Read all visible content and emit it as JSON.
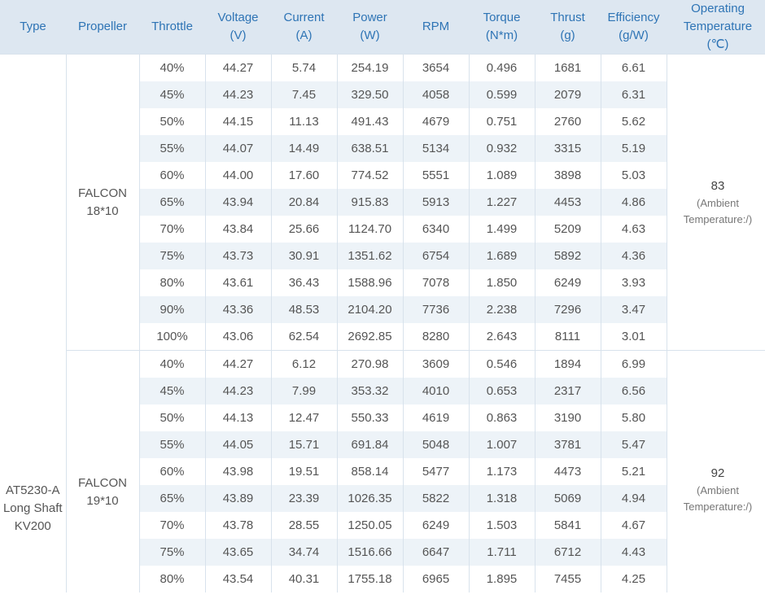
{
  "headers": {
    "type": "Type",
    "propeller": "Propeller",
    "throttle": "Throttle",
    "voltage_l1": "Voltage",
    "voltage_l2": "(V)",
    "current_l1": "Current",
    "current_l2": "(A)",
    "power_l1": "Power",
    "power_l2": "(W)",
    "rpm": "RPM",
    "torque_l1": "Torque",
    "torque_l2": "(N*m)",
    "thrust_l1": "Thrust",
    "thrust_l2": "(g)",
    "efficiency_l1": "Efficiency",
    "efficiency_l2": "(g/W)",
    "optemp_l1": "Operating",
    "optemp_l2": "Temperature",
    "optemp_l3": "(℃)"
  },
  "type": {
    "l1": "AT5230-A",
    "l2": "Long Shaft",
    "l3": "KV200"
  },
  "groups": [
    {
      "prop_l1": "FALCON",
      "prop_l2": "18*10",
      "temp": "83",
      "ambient_l1": "(Ambient",
      "ambient_l2": "Temperature:/)",
      "rows": [
        {
          "throttle": "40%",
          "voltage": "44.27",
          "current": "5.74",
          "power": "254.19",
          "rpm": "3654",
          "torque": "0.496",
          "thrust": "1681",
          "efficiency": "6.61"
        },
        {
          "throttle": "45%",
          "voltage": "44.23",
          "current": "7.45",
          "power": "329.50",
          "rpm": "4058",
          "torque": "0.599",
          "thrust": "2079",
          "efficiency": "6.31"
        },
        {
          "throttle": "50%",
          "voltage": "44.15",
          "current": "11.13",
          "power": "491.43",
          "rpm": "4679",
          "torque": "0.751",
          "thrust": "2760",
          "efficiency": "5.62"
        },
        {
          "throttle": "55%",
          "voltage": "44.07",
          "current": "14.49",
          "power": "638.51",
          "rpm": "5134",
          "torque": "0.932",
          "thrust": "3315",
          "efficiency": "5.19"
        },
        {
          "throttle": "60%",
          "voltage": "44.00",
          "current": "17.60",
          "power": "774.52",
          "rpm": "5551",
          "torque": "1.089",
          "thrust": "3898",
          "efficiency": "5.03"
        },
        {
          "throttle": "65%",
          "voltage": "43.94",
          "current": "20.84",
          "power": "915.83",
          "rpm": "5913",
          "torque": "1.227",
          "thrust": "4453",
          "efficiency": "4.86"
        },
        {
          "throttle": "70%",
          "voltage": "43.84",
          "current": "25.66",
          "power": "1124.70",
          "rpm": "6340",
          "torque": "1.499",
          "thrust": "5209",
          "efficiency": "4.63"
        },
        {
          "throttle": "75%",
          "voltage": "43.73",
          "current": "30.91",
          "power": "1351.62",
          "rpm": "6754",
          "torque": "1.689",
          "thrust": "5892",
          "efficiency": "4.36"
        },
        {
          "throttle": "80%",
          "voltage": "43.61",
          "current": "36.43",
          "power": "1588.96",
          "rpm": "7078",
          "torque": "1.850",
          "thrust": "6249",
          "efficiency": "3.93"
        },
        {
          "throttle": "90%",
          "voltage": "43.36",
          "current": "48.53",
          "power": "2104.20",
          "rpm": "7736",
          "torque": "2.238",
          "thrust": "7296",
          "efficiency": "3.47"
        },
        {
          "throttle": "100%",
          "voltage": "43.06",
          "current": "62.54",
          "power": "2692.85",
          "rpm": "8280",
          "torque": "2.643",
          "thrust": "8111",
          "efficiency": "3.01"
        }
      ]
    },
    {
      "prop_l1": "FALCON",
      "prop_l2": "19*10",
      "temp": "92",
      "ambient_l1": "(Ambient",
      "ambient_l2": "Temperature:/)",
      "rows": [
        {
          "throttle": "40%",
          "voltage": "44.27",
          "current": "6.12",
          "power": "270.98",
          "rpm": "3609",
          "torque": "0.546",
          "thrust": "1894",
          "efficiency": "6.99"
        },
        {
          "throttle": "45%",
          "voltage": "44.23",
          "current": "7.99",
          "power": "353.32",
          "rpm": "4010",
          "torque": "0.653",
          "thrust": "2317",
          "efficiency": "6.56"
        },
        {
          "throttle": "50%",
          "voltage": "44.13",
          "current": "12.47",
          "power": "550.33",
          "rpm": "4619",
          "torque": "0.863",
          "thrust": "3190",
          "efficiency": "5.80"
        },
        {
          "throttle": "55%",
          "voltage": "44.05",
          "current": "15.71",
          "power": "691.84",
          "rpm": "5048",
          "torque": "1.007",
          "thrust": "3781",
          "efficiency": "5.47"
        },
        {
          "throttle": "60%",
          "voltage": "43.98",
          "current": "19.51",
          "power": "858.14",
          "rpm": "5477",
          "torque": "1.173",
          "thrust": "4473",
          "efficiency": "5.21"
        },
        {
          "throttle": "65%",
          "voltage": "43.89",
          "current": "23.39",
          "power": "1026.35",
          "rpm": "5822",
          "torque": "1.318",
          "thrust": "5069",
          "efficiency": "4.94"
        },
        {
          "throttle": "70%",
          "voltage": "43.78",
          "current": "28.55",
          "power": "1250.05",
          "rpm": "6249",
          "torque": "1.503",
          "thrust": "5841",
          "efficiency": "4.67"
        },
        {
          "throttle": "75%",
          "voltage": "43.65",
          "current": "34.74",
          "power": "1516.66",
          "rpm": "6647",
          "torque": "1.711",
          "thrust": "6712",
          "efficiency": "4.43"
        },
        {
          "throttle": "80%",
          "voltage": "43.54",
          "current": "40.31",
          "power": "1755.18",
          "rpm": "6965",
          "torque": "1.895",
          "thrust": "7455",
          "efficiency": "4.25"
        }
      ]
    }
  ]
}
